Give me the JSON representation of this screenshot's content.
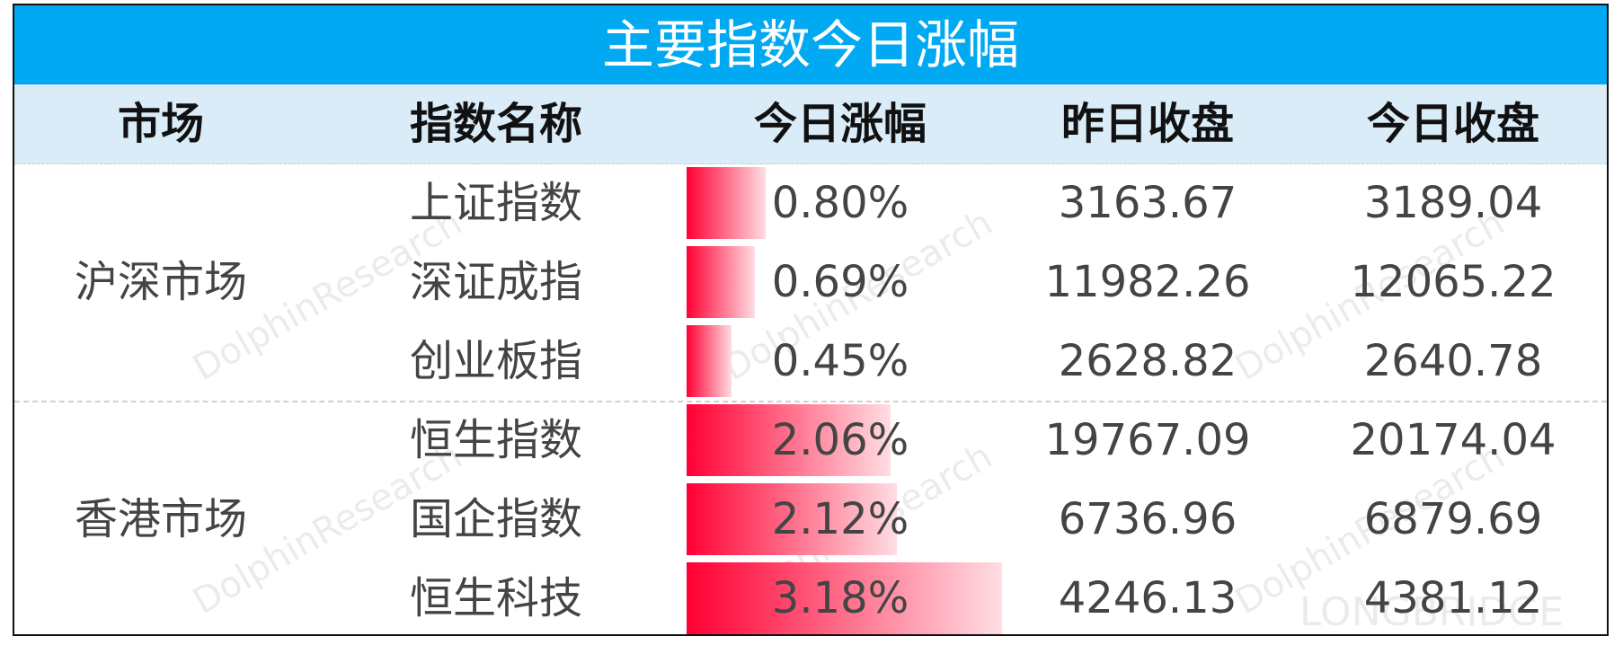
{
  "title": "主要指数今日涨幅",
  "headers": [
    "市场",
    "指数名称",
    "今日涨幅",
    "昨日收盘",
    "今日收盘"
  ],
  "groups": [
    {
      "market": "沪深市场",
      "rows": [
        {
          "name": "上证指数",
          "change": 0.8,
          "change_label": "0.80%",
          "prev_close": "3163.67",
          "close": "3189.04"
        },
        {
          "name": "深证成指",
          "change": 0.69,
          "change_label": "0.69%",
          "prev_close": "11982.26",
          "close": "12065.22"
        },
        {
          "name": "创业板指",
          "change": 0.45,
          "change_label": "0.45%",
          "prev_close": "2628.82",
          "close": "2640.78"
        }
      ]
    },
    {
      "market": "香港市场",
      "rows": [
        {
          "name": "恒生指数",
          "change": 2.06,
          "change_label": "2.06%",
          "prev_close": "19767.09",
          "close": "20174.04"
        },
        {
          "name": "国企指数",
          "change": 2.12,
          "change_label": "2.12%",
          "prev_close": "6736.96",
          "close": "6879.69"
        },
        {
          "name": "恒生科技",
          "change": 3.18,
          "change_label": "3.18%",
          "prev_close": "4246.13",
          "close": "4381.12"
        }
      ]
    }
  ],
  "watermarks": [
    "DolphinResearch",
    "LONGBRIDGE"
  ]
}
